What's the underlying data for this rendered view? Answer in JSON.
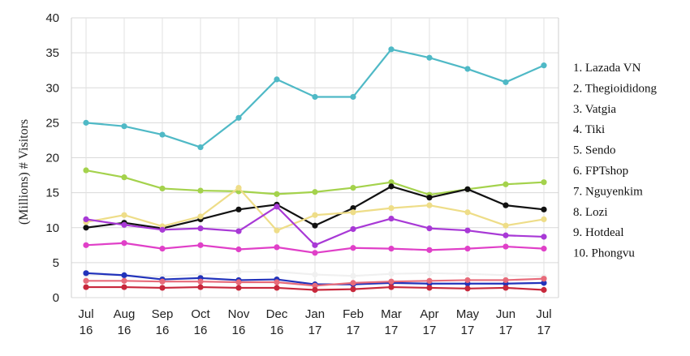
{
  "chart_data": {
    "type": "line",
    "title": "",
    "xlabel": "",
    "ylabel": "(Millions)  # Visitors",
    "ylim": [
      0,
      40
    ],
    "yticks": [
      0,
      5,
      10,
      15,
      20,
      25,
      30,
      35,
      40
    ],
    "grid": true,
    "legend_position": "right",
    "categories": [
      [
        "Jul",
        "16"
      ],
      [
        "Aug",
        "16"
      ],
      [
        "Sep",
        "16"
      ],
      [
        "Oct",
        "16"
      ],
      [
        "Nov",
        "16"
      ],
      [
        "Dec",
        "16"
      ],
      [
        "Jan",
        "17"
      ],
      [
        "Feb",
        "17"
      ],
      [
        "Mar",
        "17"
      ],
      [
        "Apr",
        "17"
      ],
      [
        "May",
        "17"
      ],
      [
        "Jun",
        "17"
      ],
      [
        "Jul",
        "17"
      ]
    ],
    "legend": [
      "1. Lazada VN",
      "2. Thegioididong",
      "3. Vatgia",
      "4. Tiki",
      "5. Sendo",
      "6. FPTshop",
      "7. Nguyenkim",
      "8. Lozi",
      "9. Hotdeal",
      "10. Phongvu"
    ],
    "series": [
      {
        "color": "#4fb9c6",
        "values": [
          25.0,
          24.5,
          23.3,
          21.5,
          25.7,
          31.2,
          28.7,
          28.7,
          35.5,
          34.3,
          32.7,
          30.8,
          33.2
        ]
      },
      {
        "color": "#a4d24c",
        "values": [
          18.2,
          17.2,
          15.6,
          15.3,
          15.2,
          14.8,
          15.1,
          15.7,
          16.5,
          14.7,
          15.5,
          16.2,
          16.5
        ]
      },
      {
        "color": "#111111",
        "values": [
          10.0,
          10.7,
          9.9,
          11.2,
          12.6,
          13.3,
          10.3,
          12.8,
          15.9,
          14.3,
          15.5,
          13.2,
          12.6
        ]
      },
      {
        "color": "#eedd88",
        "values": [
          10.8,
          11.8,
          10.2,
          11.6,
          15.7,
          9.6,
          11.8,
          12.2,
          12.8,
          13.2,
          12.2,
          10.3,
          11.2
        ]
      },
      {
        "color": "#a839d6",
        "values": [
          11.2,
          10.4,
          9.7,
          9.9,
          9.5,
          13.0,
          7.5,
          9.8,
          11.3,
          9.9,
          9.6,
          8.9,
          8.7
        ]
      },
      {
        "color": "#e040c8",
        "values": [
          7.5,
          7.8,
          7.0,
          7.5,
          6.9,
          7.2,
          6.4,
          7.1,
          7.0,
          6.8,
          7.0,
          7.3,
          7.0
        ]
      },
      {
        "color": "#f0f0f0",
        "values": [
          3.2,
          3.2,
          3.0,
          3.3,
          3.7,
          3.7,
          3.3,
          3.1,
          3.4,
          3.5,
          3.4,
          3.2,
          3.0
        ]
      },
      {
        "color": "#2233bb",
        "values": [
          3.5,
          3.2,
          2.6,
          2.8,
          2.5,
          2.6,
          1.9,
          1.9,
          2.1,
          2.0,
          2.0,
          2.0,
          2.1
        ]
      },
      {
        "color": "#e76b7a",
        "values": [
          2.4,
          2.4,
          2.3,
          2.3,
          2.2,
          2.2,
          1.7,
          2.1,
          2.3,
          2.4,
          2.5,
          2.5,
          2.7
        ]
      },
      {
        "color": "#c8283c",
        "values": [
          1.5,
          1.5,
          1.4,
          1.5,
          1.4,
          1.4,
          1.1,
          1.2,
          1.5,
          1.4,
          1.3,
          1.4,
          1.1
        ]
      }
    ]
  }
}
